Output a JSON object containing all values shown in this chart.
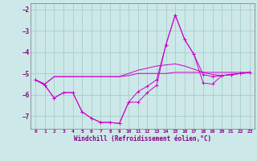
{
  "background_color": "#cce8e8",
  "grid_color": "#aacccc",
  "line_color": "#cc00cc",
  "xlabel": "Windchill (Refroidissement éolien,°C)",
  "xlim": [
    -0.5,
    23.5
  ],
  "ylim": [
    -7.6,
    -1.7
  ],
  "yticks": [
    -7,
    -6,
    -5,
    -4,
    -3,
    -2
  ],
  "xticks": [
    0,
    1,
    2,
    3,
    4,
    5,
    6,
    7,
    8,
    9,
    10,
    11,
    12,
    13,
    14,
    15,
    16,
    17,
    18,
    19,
    20,
    21,
    22,
    23
  ],
  "lines": [
    {
      "x": [
        0,
        1,
        2,
        3,
        4,
        5,
        6,
        7,
        8,
        9,
        10,
        11,
        12,
        13,
        14,
        15,
        16,
        17,
        18,
        19,
        20,
        21,
        22,
        23
      ],
      "y": [
        -5.3,
        -5.5,
        -5.15,
        -5.15,
        -5.15,
        -5.15,
        -5.15,
        -5.15,
        -5.15,
        -5.15,
        -5.1,
        -5.0,
        -5.0,
        -5.0,
        -5.0,
        -4.95,
        -4.95,
        -4.95,
        -4.95,
        -4.95,
        -4.95,
        -4.95,
        -4.95,
        -4.95
      ],
      "has_markers": false
    },
    {
      "x": [
        0,
        1,
        2,
        3,
        4,
        5,
        6,
        7,
        8,
        9,
        10,
        11,
        12,
        13,
        14,
        15,
        16,
        17,
        18,
        19,
        20,
        21,
        22,
        23
      ],
      "y": [
        -5.3,
        -5.5,
        -5.15,
        -5.15,
        -5.15,
        -5.15,
        -5.15,
        -5.15,
        -5.15,
        -5.15,
        -5.0,
        -4.85,
        -4.75,
        -4.65,
        -4.6,
        -4.55,
        -4.65,
        -4.8,
        -4.95,
        -5.05,
        -5.1,
        -5.05,
        -5.0,
        -4.95
      ],
      "has_markers": false
    },
    {
      "x": [
        0,
        1,
        2,
        3,
        4,
        5,
        6,
        7,
        8,
        9,
        10,
        11,
        12,
        13,
        14,
        15,
        16,
        17,
        18,
        19,
        20,
        21,
        22,
        23
      ],
      "y": [
        -5.3,
        -5.55,
        -6.15,
        -5.9,
        -5.9,
        -6.8,
        -7.1,
        -7.3,
        -7.3,
        -7.35,
        -6.35,
        -6.35,
        -5.9,
        -5.55,
        -3.65,
        -2.25,
        -3.4,
        -4.1,
        -5.05,
        -5.15,
        -5.1,
        -5.05,
        -5.0,
        -4.95
      ],
      "has_markers": true
    },
    {
      "x": [
        0,
        1,
        2,
        3,
        4,
        5,
        6,
        7,
        8,
        9,
        10,
        11,
        12,
        13,
        14,
        15,
        16,
        17,
        18,
        19,
        20,
        21,
        22,
        23
      ],
      "y": [
        -5.3,
        -5.55,
        -6.15,
        -5.9,
        -5.9,
        -6.8,
        -7.1,
        -7.3,
        -7.3,
        -7.35,
        -6.35,
        -5.85,
        -5.6,
        -5.3,
        -3.65,
        -2.25,
        -3.4,
        -4.1,
        -5.45,
        -5.5,
        -5.1,
        -5.05,
        -5.0,
        -4.95
      ],
      "has_markers": true
    }
  ]
}
